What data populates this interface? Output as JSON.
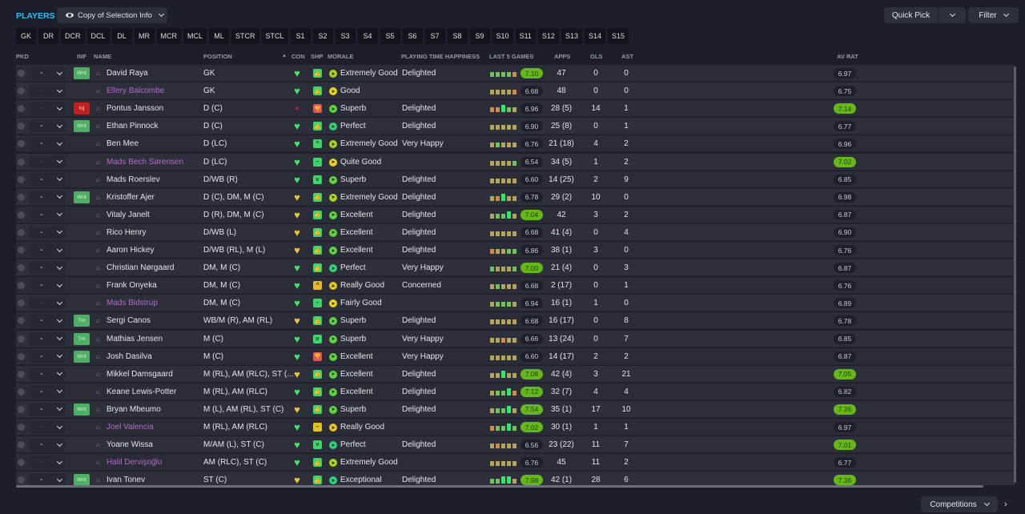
{
  "header": {
    "title": "PLAYERS",
    "view_label": "Copy of Selection Info",
    "quick_pick": "Quick Pick",
    "filter": "Filter"
  },
  "slots": [
    "GK",
    "DR",
    "DCR",
    "DCL",
    "DL",
    "MR",
    "MCR",
    "MCL",
    "ML",
    "STCR",
    "STCL",
    "S1",
    "S2",
    "S3",
    "S4",
    "S5",
    "S6",
    "S7",
    "S8",
    "S9",
    "S10",
    "S11",
    "S12",
    "S13",
    "S14",
    "S15"
  ],
  "columns": {
    "pkd": "PKD",
    "inf": "INF",
    "name": "NAME",
    "position": "POSITION",
    "sort_indicator": "▲",
    "con": "CON",
    "shp": "SHP",
    "morale": "MORALE",
    "pth": "PLAYING TIME HAPPINESS",
    "last5": "LAST 5 GAMES",
    "apps": "APPS",
    "gls": "GLS",
    "ast": "AST",
    "avrat": "AV RAT"
  },
  "colors": {
    "accent": "#22c4ee",
    "good_rating": "#66b81a",
    "unavailable_name": "#b36cc9",
    "injury": "#c0211e"
  },
  "players": [
    {
      "name": "David Raya",
      "unavailable": false,
      "pkd": "-",
      "inf": "Wnt",
      "pos": "GK",
      "con": "heart-green",
      "shp": "thumb-up",
      "morale": "Extremely Good",
      "pth": "Delighted",
      "form": "ggggo",
      "last5": "7.10",
      "last5_hi": true,
      "apps": "47",
      "gls": "0",
      "ast": "0",
      "avrat": "6.97",
      "avrat_hi": false
    },
    {
      "name": "Ellery Balcombe",
      "unavailable": true,
      "pkd": "-",
      "inf": "",
      "pos": "GK",
      "con": "heart-green",
      "shp": "thumb-up",
      "morale": "Good",
      "pth": "",
      "form": "yyyyo",
      "last5": "6.68",
      "last5_hi": false,
      "apps": "48",
      "gls": "0",
      "ast": "0",
      "avrat": "6.75",
      "avrat_hi": false
    },
    {
      "name": "Pontus Jansson",
      "unavailable": false,
      "pkd": "-",
      "inf": "Inj",
      "pos": "D (C)",
      "con": "injury",
      "shp": "thumb-down",
      "morale": "Superb",
      "pth": "Delighted",
      "form": "ooGgy",
      "last5": "6.96",
      "last5_hi": false,
      "apps": "28 (5)",
      "gls": "14",
      "ast": "1",
      "avrat": "7.14",
      "avrat_hi": true
    },
    {
      "name": "Ethan Pinnock",
      "unavailable": false,
      "pkd": "-",
      "inf": "Wnt",
      "pos": "D (C)",
      "con": "heart-green",
      "shp": "thumb-up",
      "morale": "Perfect",
      "pth": "Delighted",
      "form": "yyyyy",
      "last5": "6.90",
      "last5_hi": false,
      "apps": "25 (8)",
      "gls": "0",
      "ast": "1",
      "avrat": "6.77",
      "avrat_hi": false
    },
    {
      "name": "Ben Mee",
      "unavailable": false,
      "pkd": "-",
      "inf": "",
      "pos": "D (LC)",
      "con": "heart-green",
      "shp": "caret-up",
      "morale": "Extremely Good",
      "pth": "Very Happy",
      "form": "ygyyy",
      "last5": "6.76",
      "last5_hi": false,
      "apps": "21 (18)",
      "gls": "4",
      "ast": "2",
      "avrat": "6.96",
      "avrat_hi": false
    },
    {
      "name": "Mads Bech Sørensen",
      "unavailable": true,
      "pkd": "-",
      "inf": "",
      "pos": "D (LC)",
      "con": "heart-green",
      "shp": "dash",
      "morale": "Quite Good",
      "pth": "",
      "form": "yyyyg",
      "last5": "6.54",
      "last5_hi": false,
      "apps": "34 (5)",
      "gls": "1",
      "ast": "2",
      "avrat": "7.02",
      "avrat_hi": true
    },
    {
      "name": "Mads Roerslev",
      "unavailable": false,
      "pkd": "-",
      "inf": "",
      "pos": "D/WB (R)",
      "con": "heart-green",
      "shp": "caret-down",
      "morale": "Superb",
      "pth": "Delighted",
      "form": "yyyyy",
      "last5": "6.60",
      "last5_hi": false,
      "apps": "14 (25)",
      "gls": "2",
      "ast": "9",
      "avrat": "6.85",
      "avrat_hi": false
    },
    {
      "name": "Kristoffer Ajer",
      "unavailable": false,
      "pkd": "-",
      "inf": "Wnt",
      "pos": "D (C), DM, M (C)",
      "con": "heart-yellow",
      "shp": "thumb-up",
      "morale": "Extremely Good",
      "pth": "Delighted",
      "form": "yoGyy",
      "last5": "6.78",
      "last5_hi": false,
      "apps": "29 (2)",
      "gls": "10",
      "ast": "0",
      "avrat": "6.98",
      "avrat_hi": false
    },
    {
      "name": "Vitaly Janelt",
      "unavailable": false,
      "pkd": "-",
      "inf": "",
      "pos": "D (R), DM, M (C)",
      "con": "heart-yellow",
      "shp": "thumb-up",
      "morale": "Excellent",
      "pth": "Delighted",
      "form": "yggGy",
      "last5": "7.04",
      "last5_hi": true,
      "apps": "42",
      "gls": "3",
      "ast": "2",
      "avrat": "6.87",
      "avrat_hi": false
    },
    {
      "name": "Rico Henry",
      "unavailable": false,
      "pkd": "-",
      "inf": "",
      "pos": "D/WB (L)",
      "con": "heart-yellow",
      "shp": "thumb-up",
      "morale": "Excellent",
      "pth": "Delighted",
      "form": "yyyyy",
      "last5": "6.68",
      "last5_hi": false,
      "apps": "41 (4)",
      "gls": "0",
      "ast": "4",
      "avrat": "6.90",
      "avrat_hi": false
    },
    {
      "name": "Aaron Hickey",
      "unavailable": false,
      "pkd": "-",
      "inf": "",
      "pos": "D/WB (RL), M (L)",
      "con": "heart-yellow",
      "shp": "thumb-up",
      "morale": "Excellent",
      "pth": "Delighted",
      "form": "oyygg",
      "last5": "6.86",
      "last5_hi": false,
      "apps": "38 (1)",
      "gls": "3",
      "ast": "0",
      "avrat": "6.76",
      "avrat_hi": false
    },
    {
      "name": "Christian Nørgaard",
      "unavailable": false,
      "pkd": "-",
      "inf": "",
      "pos": "DM, M (C)",
      "con": "heart-green",
      "shp": "thumb-up",
      "morale": "Perfect",
      "pth": "Very Happy",
      "form": "gyyyg",
      "last5": "7.00",
      "last5_hi": true,
      "apps": "21 (4)",
      "gls": "0",
      "ast": "3",
      "avrat": "6.87",
      "avrat_hi": false
    },
    {
      "name": "Frank Onyeka",
      "unavailable": false,
      "pkd": "-",
      "inf": "",
      "pos": "DM, M (C)",
      "con": "heart-green",
      "shp": "caret-up-yellow",
      "morale": "Really Good",
      "pth": "Concerned",
      "form": "ygyyy",
      "last5": "6.68",
      "last5_hi": false,
      "apps": "2 (17)",
      "gls": "0",
      "ast": "1",
      "avrat": "6.76",
      "avrat_hi": false
    },
    {
      "name": "Mads Bidstrup",
      "unavailable": true,
      "pkd": "-",
      "inf": "",
      "pos": "DM, M (C)",
      "con": "heart-green",
      "shp": "dash",
      "morale": "Fairly Good",
      "pth": "",
      "form": "ygggy",
      "last5": "6.94",
      "last5_hi": false,
      "apps": "16 (1)",
      "gls": "1",
      "ast": "0",
      "avrat": "6.89",
      "avrat_hi": false
    },
    {
      "name": "Sergi Canos",
      "unavailable": false,
      "pkd": "-",
      "inf": "Tm",
      "pos": "WB/M (R), AM (RL)",
      "con": "heart-yellow",
      "shp": "thumb-up",
      "morale": "Superb",
      "pth": "Delighted",
      "form": "yyyyy",
      "last5": "6.68",
      "last5_hi": false,
      "apps": "16 (17)",
      "gls": "0",
      "ast": "8",
      "avrat": "6.78",
      "avrat_hi": false
    },
    {
      "name": "Mathias Jensen",
      "unavailable": false,
      "pkd": "-",
      "inf": "Tm",
      "pos": "M (C)",
      "con": "heart-green",
      "shp": "caret-down",
      "morale": "Superb",
      "pth": "Very Happy",
      "form": "yyoyy",
      "last5": "6.66",
      "last5_hi": false,
      "apps": "13 (24)",
      "gls": "0",
      "ast": "7",
      "avrat": "6.85",
      "avrat_hi": false
    },
    {
      "name": "Josh Dasilva",
      "unavailable": false,
      "pkd": "-",
      "inf": "Wnt",
      "pos": "M (C)",
      "con": "heart-green",
      "shp": "thumb-down",
      "morale": "Excellent",
      "pth": "Very Happy",
      "form": "yyyyy",
      "last5": "6.60",
      "last5_hi": false,
      "apps": "14 (17)",
      "gls": "2",
      "ast": "2",
      "avrat": "6.87",
      "avrat_hi": false
    },
    {
      "name": "Mikkel Damsgaard",
      "unavailable": false,
      "pkd": "-",
      "inf": "",
      "pos": "M (RL), AM (RLC), ST (...",
      "con": "heart-yellow",
      "shp": "thumb-up",
      "morale": "Excellent",
      "pth": "Delighted",
      "form": "yyGyy",
      "last5": "7.08",
      "last5_hi": true,
      "apps": "42 (4)",
      "gls": "3",
      "ast": "21",
      "avrat": "7.05",
      "avrat_hi": true
    },
    {
      "name": "Keane Lewis-Potter",
      "unavailable": false,
      "pkd": "-",
      "inf": "",
      "pos": "M (RL), AM (RLC)",
      "con": "heart-green",
      "shp": "thumb-up",
      "morale": "Excellent",
      "pth": "Delighted",
      "form": "yggGo",
      "last5": "7.12",
      "last5_hi": true,
      "apps": "32 (7)",
      "gls": "4",
      "ast": "4",
      "avrat": "6.82",
      "avrat_hi": false
    },
    {
      "name": "Bryan Mbeumo",
      "unavailable": false,
      "pkd": "-",
      "inf": "Wnt",
      "pos": "M (L), AM (RL), ST (C)",
      "con": "heart-yellow",
      "shp": "thumb-up",
      "morale": "Superb",
      "pth": "Delighted",
      "form": "yggGy",
      "last5": "7.54",
      "last5_hi": true,
      "apps": "35 (1)",
      "gls": "17",
      "ast": "10",
      "avrat": "7.26",
      "avrat_hi": true
    },
    {
      "name": "Joel Valencia",
      "unavailable": true,
      "pkd": "-",
      "inf": "",
      "pos": "M (RL), AM (RLC)",
      "con": "heart-green",
      "shp": "dash-yellow",
      "morale": "Really Good",
      "pth": "",
      "form": "oggGg",
      "last5": "7.02",
      "last5_hi": true,
      "apps": "30 (1)",
      "gls": "1",
      "ast": "1",
      "avrat": "6.97",
      "avrat_hi": false
    },
    {
      "name": "Yoane Wissa",
      "unavailable": false,
      "pkd": "-",
      "inf": "",
      "pos": "M/AM (L), ST (C)",
      "con": "heart-green",
      "shp": "caret-down",
      "morale": "Perfect",
      "pth": "Delighted",
      "form": "yoyyy",
      "last5": "6.56",
      "last5_hi": false,
      "apps": "23 (22)",
      "gls": "11",
      "ast": "7",
      "avrat": "7.01",
      "avrat_hi": true
    },
    {
      "name": "Halil Dervişoğlu",
      "unavailable": true,
      "pkd": "-",
      "inf": "",
      "pos": "AM (RLC), ST (C)",
      "con": "heart-green",
      "shp": "thumb-up",
      "morale": "Extremely Good",
      "pth": "",
      "form": "yyyyy",
      "last5": "6.76",
      "last5_hi": false,
      "apps": "45",
      "gls": "11",
      "ast": "2",
      "avrat": "6.77",
      "avrat_hi": false
    },
    {
      "name": "Ivan Tonev",
      "unavailable": false,
      "pkd": "-",
      "inf": "Wnt",
      "pos": "ST (C)",
      "con": "heart-yellow",
      "shp": "thumb-up",
      "morale": "Exceptional",
      "pth": "Delighted",
      "form": "ggGGy",
      "last5": "7.98",
      "last5_hi": true,
      "apps": "42 (1)",
      "gls": "28",
      "ast": "6",
      "avrat": "7.36",
      "avrat_hi": true
    }
  ],
  "footer": {
    "competitions": "Competitions"
  }
}
